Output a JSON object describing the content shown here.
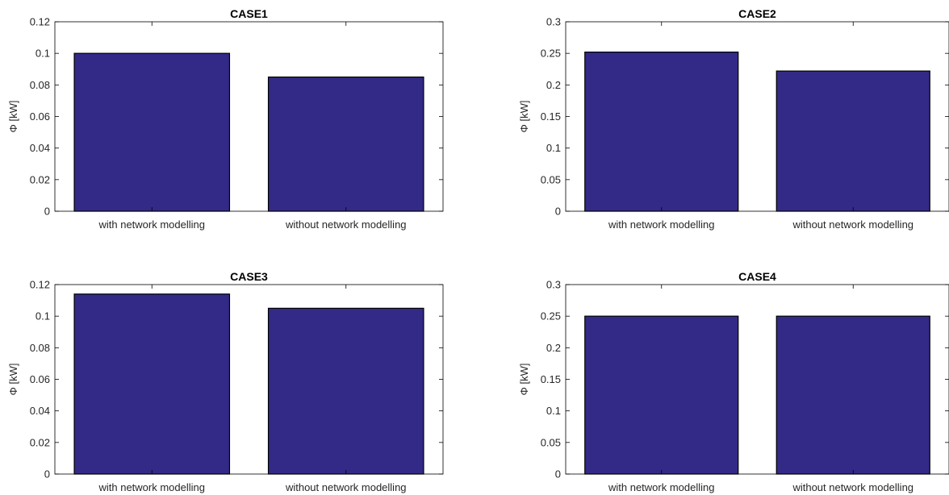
{
  "colors": {
    "bar_fill": "#332a87",
    "bar_edge": "#000000",
    "axis": "#000000",
    "background": "#ffffff"
  },
  "chart_data": [
    {
      "type": "bar",
      "title": "CASE1",
      "categories": [
        "with network modelling",
        "without network modelling"
      ],
      "values": [
        0.1,
        0.085
      ],
      "ylabel": "Φ [kW]",
      "xlabel": "",
      "ylim": [
        0,
        0.12
      ],
      "yticks": [
        0,
        0.02,
        0.04,
        0.06,
        0.08,
        0.1,
        0.12
      ],
      "ytick_labels": [
        "0",
        "0.02",
        "0.04",
        "0.06",
        "0.08",
        "0.1",
        "0.12"
      ],
      "grid": false,
      "legend": "none"
    },
    {
      "type": "bar",
      "title": "CASE2",
      "categories": [
        "with network modelling",
        "without network modelling"
      ],
      "values": [
        0.252,
        0.222
      ],
      "ylabel": "Φ [kW]",
      "xlabel": "",
      "ylim": [
        0,
        0.3
      ],
      "yticks": [
        0,
        0.05,
        0.1,
        0.15,
        0.2,
        0.25,
        0.3
      ],
      "ytick_labels": [
        "0",
        "0.05",
        "0.1",
        "0.15",
        "0.2",
        "0.25",
        "0.3"
      ],
      "grid": false,
      "legend": "none"
    },
    {
      "type": "bar",
      "title": "CASE3",
      "categories": [
        "with network modelling",
        "without network modelling"
      ],
      "values": [
        0.114,
        0.105
      ],
      "ylabel": "Φ [kW]",
      "xlabel": "",
      "ylim": [
        0,
        0.12
      ],
      "yticks": [
        0,
        0.02,
        0.04,
        0.06,
        0.08,
        0.1,
        0.12
      ],
      "ytick_labels": [
        "0",
        "0.02",
        "0.04",
        "0.06",
        "0.08",
        "0.1",
        "0.12"
      ],
      "grid": false,
      "legend": "none"
    },
    {
      "type": "bar",
      "title": "CASE4",
      "categories": [
        "with network modelling",
        "without network modelling"
      ],
      "values": [
        0.25,
        0.25
      ],
      "ylabel": "Φ [kW]",
      "xlabel": "",
      "ylim": [
        0,
        0.3
      ],
      "yticks": [
        0,
        0.05,
        0.1,
        0.15,
        0.2,
        0.25,
        0.3
      ],
      "ytick_labels": [
        "0",
        "0.05",
        "0.1",
        "0.15",
        "0.2",
        "0.25",
        "0.3"
      ],
      "grid": false,
      "legend": "none"
    }
  ]
}
